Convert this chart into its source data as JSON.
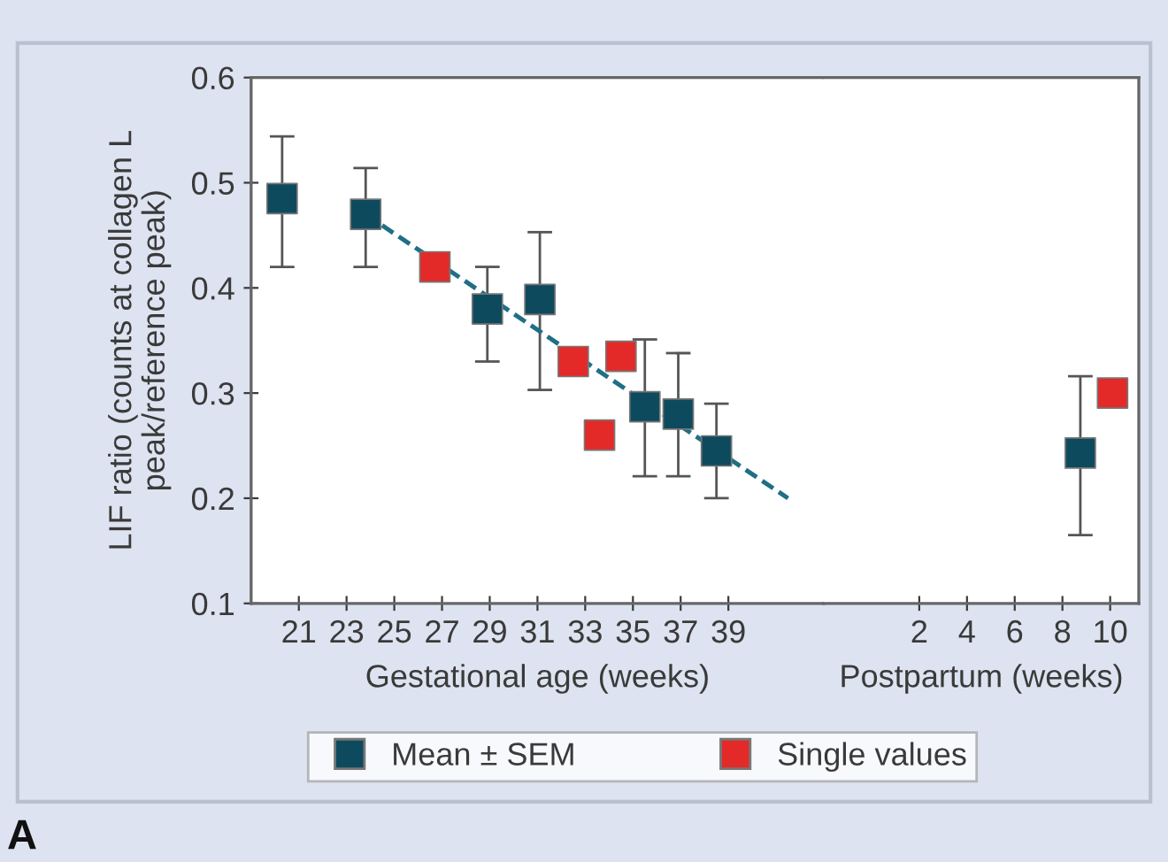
{
  "chart_data": [
    {
      "type": "scatter",
      "xlabel": "Gestational age (weeks)",
      "ylabel": "LIF ratio (counts at collagen L\npeak/reference peak)",
      "xlim": [
        19,
        43
      ],
      "xticks": [
        21,
        23,
        25,
        27,
        29,
        31,
        33,
        35,
        37,
        39
      ],
      "ylim": [
        0.1,
        0.6
      ],
      "yticks": [
        0.1,
        0.2,
        0.3,
        0.4,
        0.5,
        0.6
      ],
      "marker": "square",
      "legend": "bottom",
      "grid": false,
      "series": [
        {
          "type": "line",
          "color": "#1f6f86",
          "line_style": "dashed",
          "marker": "none",
          "x": [
            23.8,
            41.5
          ],
          "values": [
            0.47,
            0.2
          ]
        },
        {
          "name": "Mean ± SEM",
          "color": "#0e4a5e",
          "x": [
            20.3,
            23.8,
            28.9,
            31.1,
            35.5,
            36.9,
            38.5
          ],
          "values": [
            0.485,
            0.47,
            0.38,
            0.389,
            0.287,
            0.28,
            0.245
          ],
          "errors": [
            [
              0.42,
              0.544
            ],
            [
              0.42,
              0.514
            ],
            [
              0.33,
              0.42
            ],
            [
              0.303,
              0.453
            ],
            [
              0.221,
              0.351
            ],
            [
              0.221,
              0.338
            ],
            [
              0.2,
              0.29
            ]
          ]
        },
        {
          "name": "Single values",
          "color": "#e32a28",
          "x": [
            26.7,
            32.5,
            33.6,
            34.5
          ],
          "values": [
            0.42,
            0.33,
            0.26,
            0.335
          ]
        }
      ],
      "annotations": [
        "A"
      ]
    },
    {
      "type": "scatter",
      "xlabel": "Postpartum (weeks)",
      "xlim": [
        -2,
        11.2
      ],
      "xticks": [
        2,
        4,
        6,
        8,
        10
      ],
      "ylim": [
        0.1,
        0.6
      ],
      "marker": "square",
      "tick_labels": "x",
      "grid": false,
      "series": [
        {
          "color": "#0e4a5e",
          "x": [
            8.75
          ],
          "values": [
            0.243
          ],
          "errors": [
            [
              0.165,
              0.316
            ]
          ]
        },
        {
          "color": "#e32a28",
          "x": [
            10.1
          ],
          "values": [
            0.3
          ]
        }
      ]
    }
  ]
}
